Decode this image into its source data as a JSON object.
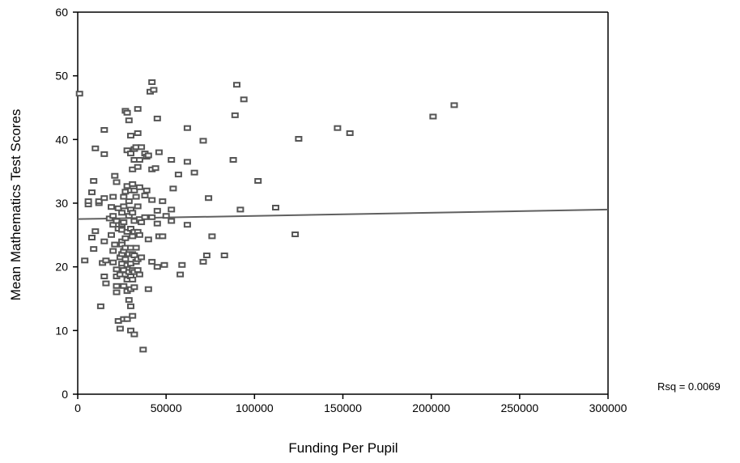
{
  "chart_data": {
    "type": "scatter",
    "title": "",
    "xlabel": "Funding Per Pupil",
    "ylabel": "Mean Mathematics Test Scores",
    "xlim": [
      0,
      300000
    ],
    "ylim": [
      0,
      60
    ],
    "x_ticks": [
      0,
      50000,
      100000,
      150000,
      200000,
      250000,
      300000
    ],
    "y_ticks": [
      0,
      10,
      20,
      30,
      40,
      50,
      60
    ],
    "x_tick_labels": [
      "0",
      "50000",
      "100000",
      "150000",
      "200000",
      "250000",
      "300000"
    ],
    "y_tick_labels": [
      "0",
      "10",
      "20",
      "30",
      "40",
      "50",
      "60"
    ],
    "grid": false,
    "legend": "none",
    "rsq_label": "Rsq = 0.0069",
    "fit_line": {
      "x": [
        0,
        300000
      ],
      "y": [
        27.5,
        29.0
      ]
    },
    "colors": {
      "marker": "#555555",
      "fit_line": "#606060",
      "axis": "#000000"
    },
    "points": [
      [
        1000,
        47.2
      ],
      [
        4000,
        21.0
      ],
      [
        6000,
        29.8
      ],
      [
        6000,
        30.3
      ],
      [
        8000,
        31.7
      ],
      [
        8000,
        24.6
      ],
      [
        9000,
        33.5
      ],
      [
        9000,
        22.8
      ],
      [
        10000,
        25.6
      ],
      [
        10000,
        38.6
      ],
      [
        12000,
        30.0
      ],
      [
        12000,
        30.3
      ],
      [
        13000,
        13.8
      ],
      [
        14000,
        20.6
      ],
      [
        15000,
        41.5
      ],
      [
        15000,
        37.7
      ],
      [
        15000,
        30.8
      ],
      [
        15000,
        24.0
      ],
      [
        15000,
        18.5
      ],
      [
        16000,
        17.4
      ],
      [
        16000,
        21.0
      ],
      [
        18000,
        27.6
      ],
      [
        19000,
        25.0
      ],
      [
        19000,
        29.4
      ],
      [
        20000,
        31.0
      ],
      [
        20000,
        28.0
      ],
      [
        20000,
        26.6
      ],
      [
        20000,
        22.5
      ],
      [
        20000,
        20.7
      ],
      [
        21000,
        34.3
      ],
      [
        21000,
        23.5
      ],
      [
        22000,
        33.3
      ],
      [
        22000,
        27.2
      ],
      [
        22000,
        19.6
      ],
      [
        22000,
        18.5
      ],
      [
        22000,
        17.0
      ],
      [
        22000,
        16.0
      ],
      [
        23000,
        29.2
      ],
      [
        23000,
        26.0
      ],
      [
        23000,
        11.5
      ],
      [
        24000,
        21.5
      ],
      [
        24000,
        18.8
      ],
      [
        24000,
        10.3
      ],
      [
        25000,
        28.5
      ],
      [
        25000,
        26.7
      ],
      [
        25000,
        25.8
      ],
      [
        25000,
        24.0
      ],
      [
        25000,
        23.5
      ],
      [
        25000,
        22.0
      ],
      [
        25000,
        20.5
      ],
      [
        26000,
        31.0
      ],
      [
        26000,
        29.5
      ],
      [
        26000,
        27.0
      ],
      [
        26000,
        22.5
      ],
      [
        26000,
        19.5
      ],
      [
        26000,
        17.0
      ],
      [
        26000,
        11.8
      ],
      [
        27000,
        44.5
      ],
      [
        27000,
        31.8
      ],
      [
        27000,
        24.5
      ],
      [
        27000,
        23.0
      ],
      [
        27000,
        21.2
      ],
      [
        27000,
        18.8
      ],
      [
        28000,
        44.2
      ],
      [
        28000,
        38.3
      ],
      [
        28000,
        32.7
      ],
      [
        28000,
        25.5
      ],
      [
        28000,
        20.3
      ],
      [
        28000,
        18.0
      ],
      [
        28000,
        16.2
      ],
      [
        28000,
        11.8
      ],
      [
        29000,
        43.0
      ],
      [
        29000,
        30.3
      ],
      [
        29000,
        28.0
      ],
      [
        29000,
        22.0
      ],
      [
        29000,
        19.2
      ],
      [
        29000,
        14.8
      ],
      [
        30000,
        40.6
      ],
      [
        30000,
        37.8
      ],
      [
        30000,
        32.0
      ],
      [
        30000,
        29.0
      ],
      [
        30000,
        26.0
      ],
      [
        30000,
        23.0
      ],
      [
        30000,
        20.5
      ],
      [
        30000,
        18.5
      ],
      [
        30000,
        16.5
      ],
      [
        30000,
        13.8
      ],
      [
        30000,
        10.0
      ],
      [
        31000,
        35.3
      ],
      [
        31000,
        33.0
      ],
      [
        31000,
        28.5
      ],
      [
        31000,
        24.8
      ],
      [
        31000,
        22.0
      ],
      [
        31000,
        19.5
      ],
      [
        31000,
        18.0
      ],
      [
        31000,
        12.3
      ],
      [
        32000,
        38.5
      ],
      [
        32000,
        36.8
      ],
      [
        32000,
        32.0
      ],
      [
        32000,
        27.2
      ],
      [
        32000,
        25.5
      ],
      [
        32000,
        21.8
      ],
      [
        32000,
        19.2
      ],
      [
        32000,
        16.8
      ],
      [
        32000,
        9.4
      ],
      [
        33000,
        38.8
      ],
      [
        33000,
        31.0
      ],
      [
        33000,
        23.0
      ],
      [
        33000,
        20.8
      ],
      [
        34000,
        44.8
      ],
      [
        34000,
        41.0
      ],
      [
        34000,
        35.7
      ],
      [
        34000,
        29.5
      ],
      [
        34000,
        25.5
      ],
      [
        34000,
        21.2
      ],
      [
        34000,
        19.5
      ],
      [
        35000,
        36.8
      ],
      [
        35000,
        32.5
      ],
      [
        35000,
        27.5
      ],
      [
        35000,
        25.0
      ],
      [
        35000,
        18.8
      ],
      [
        36000,
        38.8
      ],
      [
        36000,
        27.0
      ],
      [
        36000,
        21.5
      ],
      [
        37000,
        7.0
      ],
      [
        38000,
        37.8
      ],
      [
        38000,
        31.2
      ],
      [
        38000,
        27.8
      ],
      [
        39000,
        32.0
      ],
      [
        39000,
        37.3
      ],
      [
        40000,
        37.5
      ],
      [
        40000,
        24.3
      ],
      [
        40000,
        16.5
      ],
      [
        41000,
        47.5
      ],
      [
        42000,
        49.0
      ],
      [
        42000,
        35.3
      ],
      [
        42000,
        30.5
      ],
      [
        42000,
        27.8
      ],
      [
        42000,
        20.8
      ],
      [
        43000,
        47.8
      ],
      [
        44000,
        35.5
      ],
      [
        45000,
        43.3
      ],
      [
        45000,
        28.8
      ],
      [
        45000,
        26.8
      ],
      [
        45000,
        20.0
      ],
      [
        46000,
        38.0
      ],
      [
        46000,
        24.8
      ],
      [
        48000,
        30.3
      ],
      [
        48000,
        24.8
      ],
      [
        49000,
        20.3
      ],
      [
        50000,
        28.0
      ],
      [
        53000,
        36.8
      ],
      [
        53000,
        29.0
      ],
      [
        53000,
        27.2
      ],
      [
        54000,
        32.3
      ],
      [
        57000,
        34.5
      ],
      [
        58000,
        18.8
      ],
      [
        59000,
        20.3
      ],
      [
        62000,
        41.8
      ],
      [
        62000,
        36.5
      ],
      [
        62000,
        26.6
      ],
      [
        66000,
        34.8
      ],
      [
        71000,
        39.8
      ],
      [
        71000,
        20.8
      ],
      [
        73000,
        21.8
      ],
      [
        74000,
        30.8
      ],
      [
        76000,
        24.8
      ],
      [
        83000,
        21.8
      ],
      [
        88000,
        36.8
      ],
      [
        89000,
        43.8
      ],
      [
        90000,
        48.6
      ],
      [
        92000,
        29.0
      ],
      [
        94000,
        46.3
      ],
      [
        102000,
        33.5
      ],
      [
        112000,
        29.3
      ],
      [
        123000,
        25.1
      ],
      [
        125000,
        40.1
      ],
      [
        147000,
        41.8
      ],
      [
        154000,
        41.0
      ],
      [
        201000,
        43.6
      ],
      [
        213000,
        45.4
      ]
    ]
  }
}
